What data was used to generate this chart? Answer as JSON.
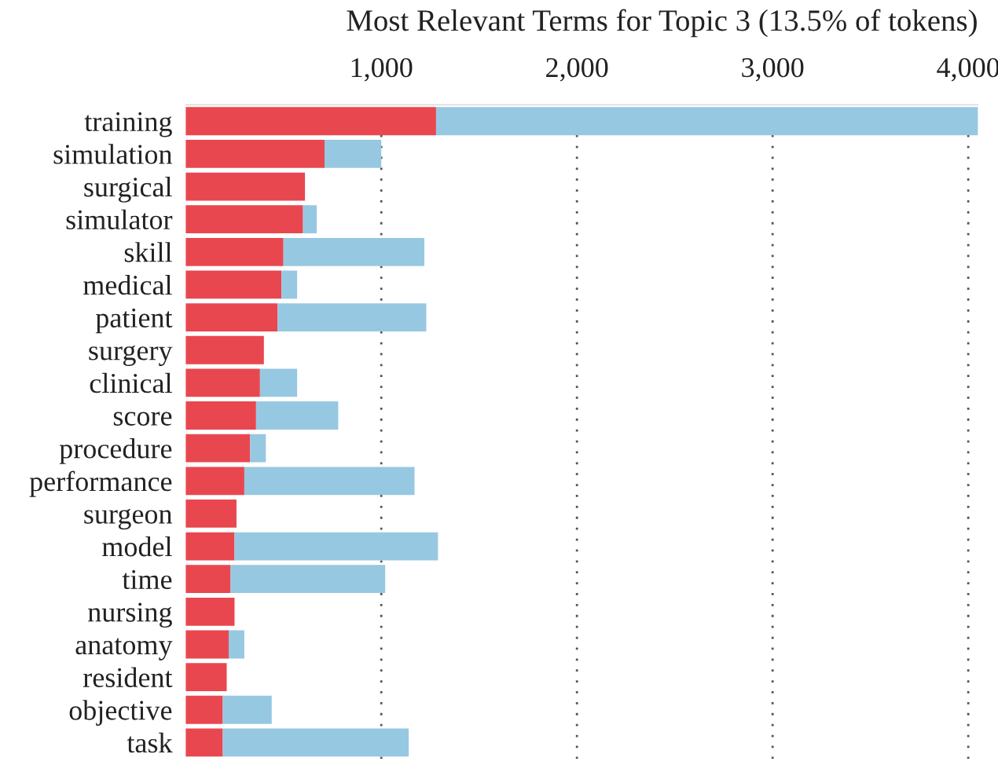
{
  "chart_data": {
    "type": "bar",
    "orientation": "horizontal",
    "title": "Most Relevant Terms for Topic 3 (13.5% of tokens)",
    "categories": [
      "training",
      "simulation",
      "surgical",
      "simulator",
      "skill",
      "medical",
      "patient",
      "surgery",
      "clinical",
      "score",
      "procedure",
      "performance",
      "surgeon",
      "model",
      "time",
      "nursing",
      "anatomy",
      "resident",
      "objective",
      "task"
    ],
    "stacked": true,
    "series": [
      {
        "color": "#e9474f",
        "values": [
          1280,
          710,
          610,
          600,
          500,
          490,
          470,
          400,
          380,
          360,
          330,
          300,
          260,
          250,
          230,
          250,
          220,
          210,
          190,
          190
        ]
      },
      {
        "color": "#97c8e2",
        "values": [
          2770,
          290,
          null,
          70,
          720,
          80,
          760,
          null,
          190,
          420,
          80,
          870,
          null,
          1040,
          790,
          null,
          80,
          null,
          250,
          950
        ]
      }
    ],
    "xlim": [
      0,
      4050
    ],
    "xticks": [
      {
        "value": 1000,
        "label": "1,000"
      },
      {
        "value": 2000,
        "label": "2,000"
      },
      {
        "value": 3000,
        "label": "3,000"
      },
      {
        "value": 4000,
        "label": "4,000"
      }
    ],
    "grid": "x"
  }
}
